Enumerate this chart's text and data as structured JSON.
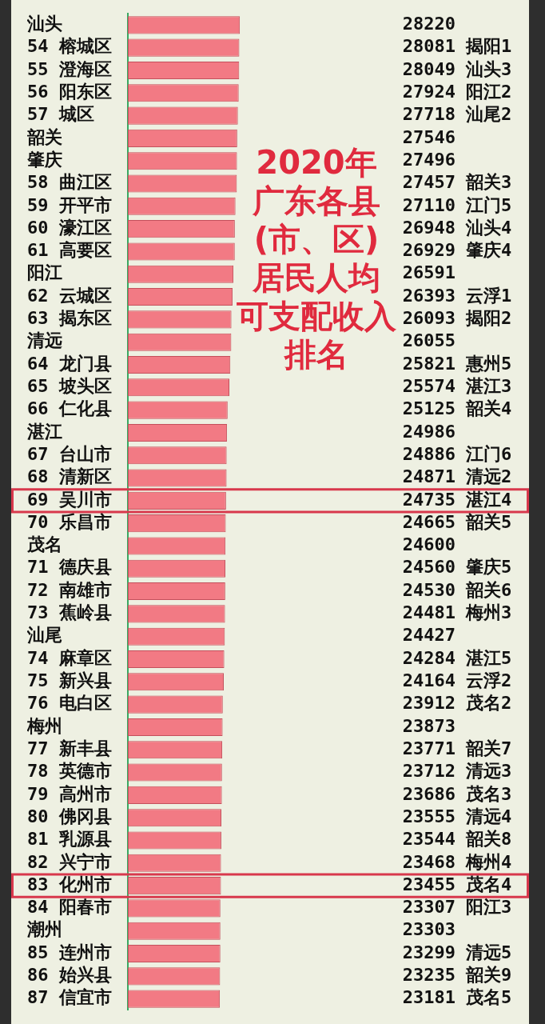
{
  "chart_data": {
    "type": "bar",
    "title": "2020年广东各县(市、区)居民人均可支配收入排名",
    "orientation": "horizontal",
    "color": "#f27a84",
    "data_labels": true,
    "categories": [
      "汕头",
      "54 榕城区",
      "55 澄海区",
      "56 阳东区",
      "57 城区",
      "韶关",
      "肇庆",
      "58 曲江区",
      "59 开平市",
      "60 濠江区",
      "61 高要区",
      "阳江",
      "62 云城区",
      "63 揭东区",
      "清远",
      "64 龙门县",
      "65 坡头区",
      "66 仁化县",
      "湛江",
      "67 台山市",
      "68 清新区",
      "69 吴川市",
      "70 乐昌市",
      "茂名",
      "71 德庆县",
      "72 南雄市",
      "73 蕉岭县",
      "汕尾",
      "74 麻章区",
      "75 新兴县",
      "76 电白区",
      "梅州",
      "77 新丰县",
      "78 英德市",
      "79 高州市",
      "80 佛冈县",
      "81 乳源县",
      "82 兴宁市",
      "83 化州市",
      "84 阳春市",
      "潮州",
      "85 连州市",
      "86 始兴县",
      "87 信宜市"
    ],
    "values": [
      28220,
      28081,
      28049,
      27924,
      27718,
      27546,
      27496,
      27457,
      27110,
      26948,
      26929,
      26591,
      26393,
      26093,
      26055,
      25821,
      25574,
      25125,
      24986,
      24886,
      24871,
      24735,
      24665,
      24600,
      24560,
      24530,
      24481,
      24427,
      24284,
      24164,
      23912,
      23873,
      23771,
      23712,
      23686,
      23555,
      23544,
      23468,
      23455,
      23307,
      23303,
      23299,
      23235,
      23181
    ],
    "y2_categories": [
      null,
      "揭阳1",
      "汕头3",
      "阳江2",
      "汕尾2",
      null,
      null,
      "韶关3",
      "江门5",
      "汕头4",
      "肇庆4",
      null,
      "云浮1",
      "揭阳2",
      null,
      "惠州5",
      "湛江3",
      "韶关4",
      null,
      "江门6",
      "清远2",
      "湛江4",
      "韶关5",
      null,
      "肇庆5",
      "韶关6",
      "梅州3",
      null,
      "湛江5",
      "云浮2",
      "茂名2",
      null,
      "韶关7",
      "清远3",
      "茂名3",
      "清远4",
      "韶关8",
      "梅州4",
      "茂名4",
      "阳江3",
      null,
      "清远5",
      "韶关9",
      "茂名5"
    ],
    "bands": [
      {
        "axis": "y",
        "from": "69 吴川市",
        "to": "69 吴川市",
        "color": "#d8384c"
      },
      {
        "axis": "y",
        "from": "83 化州市",
        "to": "83 化州市",
        "color": "#d8384c"
      }
    ]
  }
}
